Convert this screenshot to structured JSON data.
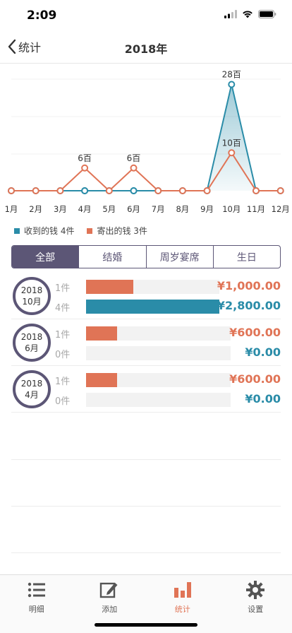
{
  "status_bar": {
    "time": "2:09"
  },
  "nav": {
    "back_label": "统计",
    "title": "2018年"
  },
  "chart_data": {
    "type": "line",
    "categories": [
      "1月",
      "2月",
      "3月",
      "4月",
      "5月",
      "6月",
      "7月",
      "8月",
      "9月",
      "10月",
      "11月",
      "12月"
    ],
    "series": [
      {
        "name": "收到的钱",
        "color": "#2a8ca8",
        "values": [
          0,
          0,
          0,
          0,
          0,
          0,
          0,
          0,
          0,
          2800,
          0,
          0
        ]
      },
      {
        "name": "寄出的钱",
        "color": "#e07456",
        "values": [
          0,
          0,
          0,
          600,
          0,
          600,
          0,
          0,
          0,
          1000,
          0,
          0
        ]
      }
    ],
    "point_labels": [
      {
        "month_index": 3,
        "text": "6百"
      },
      {
        "month_index": 5,
        "text": "6百"
      },
      {
        "month_index": 9,
        "text": "10百"
      },
      {
        "month_index": 9,
        "text": "28百"
      }
    ],
    "ylim": [
      0,
      3200
    ],
    "grid": true
  },
  "legend": {
    "received": {
      "label": "收到的钱 4件",
      "color": "#2a8ca8"
    },
    "sent": {
      "label": "寄出的钱 3件",
      "color": "#e07456"
    }
  },
  "filters": [
    "全部",
    "结婚",
    "周岁宴席",
    "生日"
  ],
  "records": [
    {
      "year": "2018",
      "month": "10月",
      "sent": {
        "count": "1件",
        "amount": "¥1,000.00",
        "fraction": 0.357
      },
      "received": {
        "count": "4件",
        "amount": "¥2,800.00",
        "fraction": 1.0
      }
    },
    {
      "year": "2018",
      "month": "6月",
      "sent": {
        "count": "1件",
        "amount": "¥600.00",
        "fraction": 0.214
      },
      "received": {
        "count": "0件",
        "amount": "¥0.00",
        "fraction": 0
      }
    },
    {
      "year": "2018",
      "month": "4月",
      "sent": {
        "count": "1件",
        "amount": "¥600.00",
        "fraction": 0.214
      },
      "received": {
        "count": "0件",
        "amount": "¥0.00",
        "fraction": 0
      }
    }
  ],
  "colors": {
    "accent": "#5c5676",
    "sent": "#e07456",
    "received": "#2a8ca8"
  },
  "tabs": [
    {
      "label": "明细",
      "icon": "list-icon"
    },
    {
      "label": "添加",
      "icon": "edit-icon"
    },
    {
      "label": "统计",
      "icon": "bar-chart-icon"
    },
    {
      "label": "设置",
      "icon": "gear-icon"
    }
  ]
}
